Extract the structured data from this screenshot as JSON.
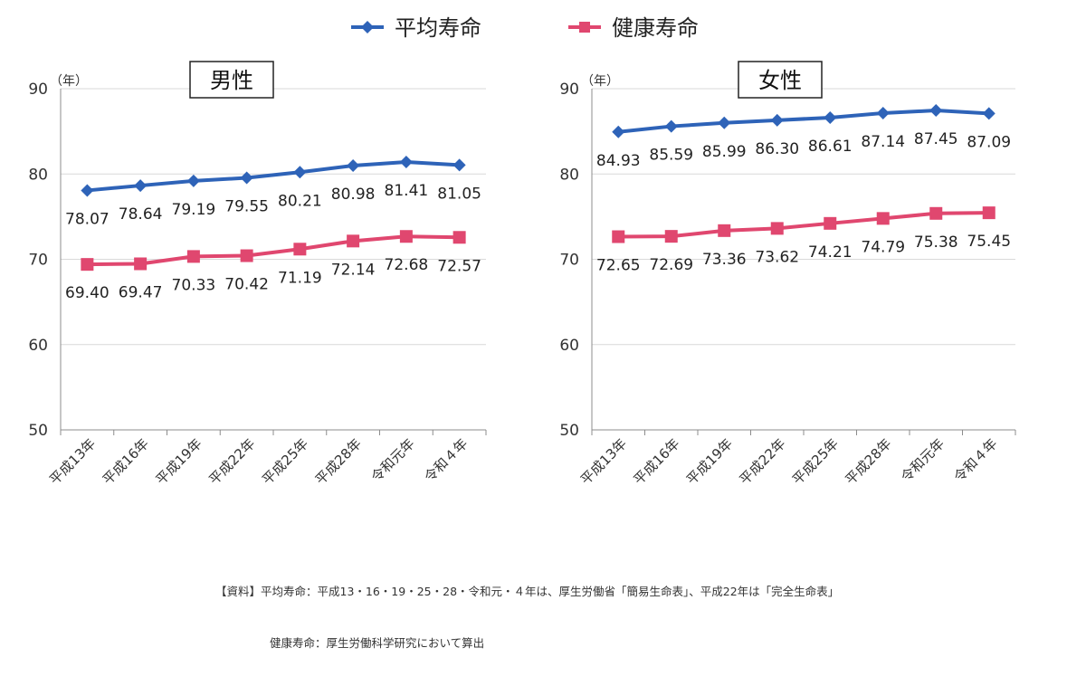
{
  "legend": {
    "items": [
      {
        "label": "平均寿命",
        "color": "#2e63b8",
        "marker": "diamond"
      },
      {
        "label": "健康寿命",
        "color": "#e0476f",
        "marker": "square"
      }
    ]
  },
  "source": {
    "line1": "【資料】平均寿命：平成13・16・19・25・28・令和元・４年は、厚生労働省「簡易生命表」、平成22年は「完全生命表」",
    "line2": "健康寿命：厚生労働科学研究において算出"
  },
  "chart_data": [
    {
      "type": "line",
      "title": "男性",
      "ylabel": "（年）",
      "ylim": [
        50,
        90
      ],
      "yticks": [
        50,
        60,
        70,
        80,
        90
      ],
      "grid": true,
      "legend_position": "top-center",
      "categories": [
        "平成13年",
        "平成16年",
        "平成19年",
        "平成22年",
        "平成25年",
        "平成28年",
        "令和元年",
        "令和４年"
      ],
      "series": [
        {
          "name": "平均寿命",
          "color": "#2e63b8",
          "marker": "diamond",
          "values": [
            78.07,
            78.64,
            79.19,
            79.55,
            80.21,
            80.98,
            81.41,
            81.05
          ],
          "labels": [
            "78.07",
            "78.64",
            "79.19",
            "79.55",
            "80.21",
            "80.98",
            "81.41",
            "81.05"
          ]
        },
        {
          "name": "健康寿命",
          "color": "#e0476f",
          "marker": "square",
          "values": [
            69.4,
            69.47,
            70.33,
            70.42,
            71.19,
            72.14,
            72.68,
            72.57
          ],
          "labels": [
            "69.40",
            "69.47",
            "70.33",
            "70.42",
            "71.19",
            "72.14",
            "72.68",
            "72.57"
          ]
        }
      ]
    },
    {
      "type": "line",
      "title": "女性",
      "ylabel": "（年）",
      "ylim": [
        50,
        90
      ],
      "yticks": [
        50,
        60,
        70,
        80,
        90
      ],
      "grid": true,
      "legend_position": "top-center",
      "categories": [
        "平成13年",
        "平成16年",
        "平成19年",
        "平成22年",
        "平成25年",
        "平成28年",
        "令和元年",
        "令和４年"
      ],
      "series": [
        {
          "name": "平均寿命",
          "color": "#2e63b8",
          "marker": "diamond",
          "values": [
            84.93,
            85.59,
            85.99,
            86.3,
            86.61,
            87.14,
            87.45,
            87.09
          ],
          "labels": [
            "84.93",
            "85.59",
            "85.99",
            "86.30",
            "86.61",
            "87.14",
            "87.45",
            "87.09"
          ]
        },
        {
          "name": "健康寿命",
          "color": "#e0476f",
          "marker": "square",
          "values": [
            72.65,
            72.69,
            73.36,
            73.62,
            74.21,
            74.79,
            75.38,
            75.45
          ],
          "labels": [
            "72.65",
            "72.69",
            "73.36",
            "73.62",
            "74.21",
            "74.79",
            "75.38",
            "75.45"
          ]
        }
      ]
    }
  ]
}
